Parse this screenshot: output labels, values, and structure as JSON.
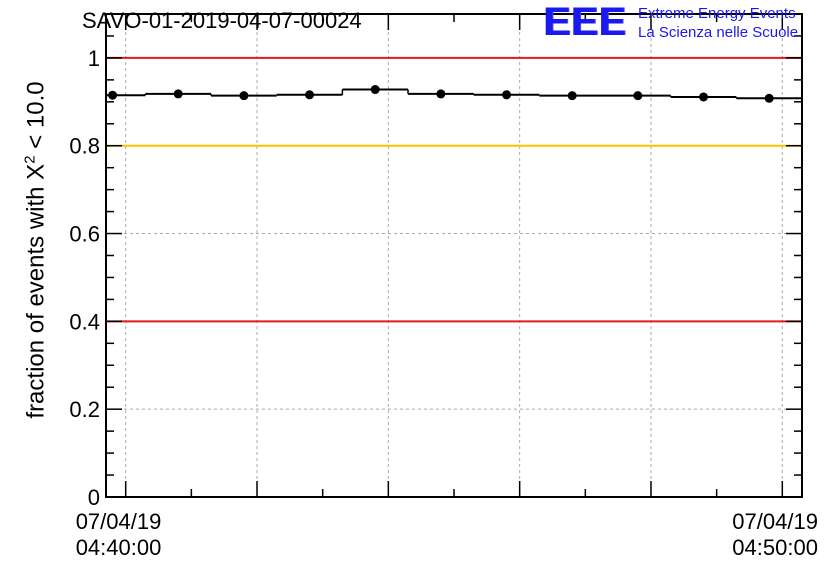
{
  "chart_data": {
    "type": "scatter",
    "title": "SAVO-01-2019-04-07-00024",
    "ylabel_prefix": "fraction of events with X",
    "ylabel_sup": "2",
    "ylabel_suffix": " < 10.0",
    "xlabel": "",
    "ylim": [
      0,
      1.1
    ],
    "y_ticks": [
      "0",
      "0.2",
      "0.4",
      "0.6",
      "0.8",
      "1"
    ],
    "x_tick_labels": [
      {
        "date": "07/04/19",
        "time": "04:40:00"
      },
      {
        "date": "07/04/19",
        "time": "04:50:00"
      }
    ],
    "xlim_minutes": [
      -0.3,
      10.3
    ],
    "grid": true,
    "series": [
      {
        "x": [
          -0.2,
          0.8,
          1.8,
          2.8,
          3.8,
          4.8,
          5.8,
          6.8,
          7.8,
          8.8,
          9.8
        ],
        "y": [
          0.915,
          0.918,
          0.914,
          0.916,
          0.928,
          0.918,
          0.916,
          0.914,
          0.914,
          0.911,
          0.908
        ],
        "bin_half_width": 0.5
      }
    ],
    "reference_lines": [
      {
        "y": 1.0,
        "color": "#e8181a"
      },
      {
        "y": 0.8,
        "color": "#f5c400"
      },
      {
        "y": 0.4,
        "color": "#e8181a"
      }
    ]
  },
  "logo": {
    "mark": "EEE",
    "line1": "Extreme Energy Events",
    "line2": "La Scienza nelle Scuole",
    "color": "#1a1aee"
  }
}
